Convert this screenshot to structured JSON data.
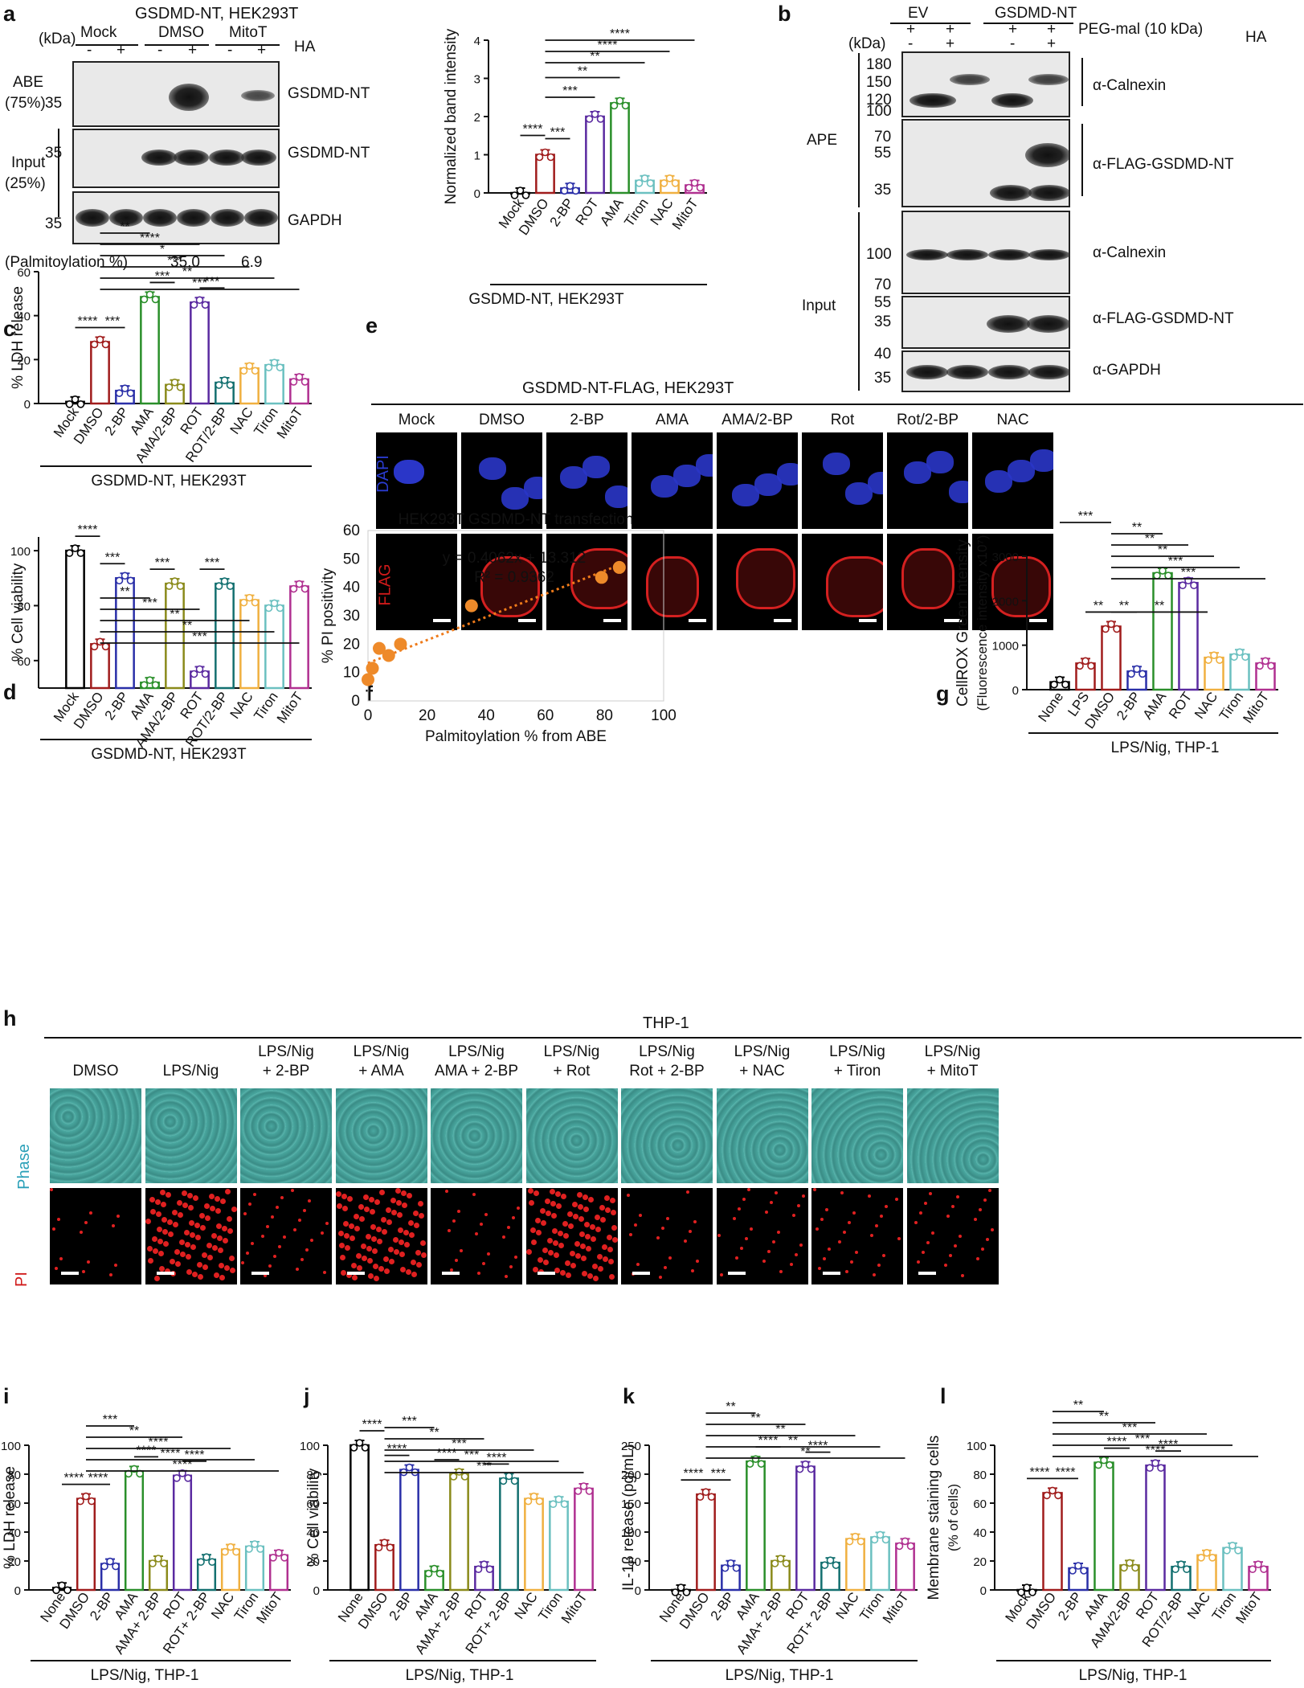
{
  "colors": {
    "Mock": "#000000",
    "None": "#000000",
    "DMSO": "#a01c1c",
    "2-BP": "#2a2fa8",
    "AMA": "#2a8f2a",
    "AMA/2-BP": "#8a8a1a",
    "ROT": "#5a2aa0",
    "ROT/2-BP": "#137070",
    "NAC": "#f0b040",
    "Tiron": "#6bc0c0",
    "MitoT": "#b03090",
    "LPS": "#a01c1c",
    "dot": "#ee8a2a"
  },
  "panel_labels": {
    "a": "a",
    "b": "b",
    "c": "c",
    "d": "d",
    "e": "e",
    "f": "f",
    "g": "g",
    "h": "h",
    "i": "i",
    "j": "j",
    "k": "k",
    "l": "l"
  },
  "panel_a": {
    "title": "GSDMD-NT, HEK293T",
    "kda": "(kDa)",
    "groups": [
      "Mock",
      "DMSO",
      "MitoT"
    ],
    "ha_signs": [
      "-",
      "+",
      "-",
      "+",
      "-",
      "+"
    ],
    "ha": "HA",
    "abe": "ABE",
    "abe_pct": "(75%)",
    "input": "Input",
    "input_pct": "(25%)",
    "mw": [
      "35",
      "35",
      "35"
    ],
    "blot_labels": [
      "GSDMD-NT",
      "GSDMD-NT",
      "GAPDH"
    ],
    "palm_label": "(Palmitoylation %)",
    "palm_values": [
      "35.0",
      "6.9"
    ]
  },
  "panel_a_chart": {
    "ylabel": "Normalized band intensity",
    "xlabel": "GSDMD-NT, HEK293T",
    "yticks": [
      "0",
      "1",
      "2",
      "3",
      "4"
    ],
    "sig": [
      "****",
      "***",
      "***",
      "**",
      "**",
      "****",
      "****"
    ]
  },
  "panel_b": {
    "groups": [
      "EV",
      "GSDMD-NT"
    ],
    "peg": "PEG-mal (10 kDa)",
    "ha": "HA",
    "peg_signs": [
      "+",
      "+",
      "+",
      "+"
    ],
    "ha_signs": [
      "-",
      "+",
      "-",
      "+"
    ],
    "kda": "(kDa)",
    "ape": "APE",
    "input": "Input",
    "mw_ape": [
      "180",
      "150",
      "120",
      "100",
      "70",
      "55",
      "35"
    ],
    "mw_input": [
      "100",
      "70",
      "55",
      "35",
      "40",
      "35"
    ],
    "labels": [
      "α-Calnexin",
      "α-FLAG-GSDMD-NT",
      "α-Calnexin",
      "α-FLAG-GSDMD-NT",
      "α-GAPDH"
    ]
  },
  "panel_e": {
    "title": "GSDMD-NT-FLAG, HEK293T",
    "cols": [
      "Mock",
      "DMSO",
      "2-BP",
      "AMA",
      "AMA/2-BP",
      "Rot",
      "Rot/2-BP",
      "NAC"
    ],
    "rows": [
      "DAPI",
      "FLAG"
    ]
  },
  "panel_h": {
    "title": "THP-1",
    "cols_line1": [
      "DMSO",
      "LPS/Nig",
      "LPS/Nig",
      "LPS/Nig",
      "LPS/Nig",
      "LPS/Nig",
      "LPS/Nig",
      "LPS/Nig",
      "LPS/Nig",
      "LPS/Nig"
    ],
    "cols_line2": [
      "",
      "",
      "+ 2-BP",
      "+ AMA",
      "AMA + 2-BP",
      "+ Rot",
      "Rot + 2-BP",
      "+ NAC",
      "+ Tiron",
      "+ MitoT"
    ],
    "rows": [
      "Phase",
      "PI"
    ]
  },
  "chart_data": [
    {
      "id": "a",
      "type": "bar",
      "categories": [
        "Mock",
        "DMSO",
        "2-BP",
        "ROT",
        "AMA",
        "Tiron",
        "NAC",
        "MitoT"
      ],
      "values": [
        0,
        1.0,
        0.12,
        2.0,
        2.35,
        0.32,
        0.32,
        0.2
      ],
      "ylim": [
        0,
        4
      ],
      "ylabel": "Normalized band intensity",
      "xlabel": "GSDMD-NT, HEK293T"
    },
    {
      "id": "c",
      "type": "bar",
      "categories": [
        "Mock",
        "DMSO",
        "2-BP",
        "AMA",
        "AMA/2-BP",
        "ROT",
        "ROT/2-BP",
        "NAC",
        "Tiron",
        "MitoT"
      ],
      "values": [
        0.8,
        28,
        5.8,
        48.5,
        8.5,
        46,
        9.5,
        16,
        17.5,
        11
      ],
      "ylim": [
        0,
        60
      ],
      "ylabel": "% LDH release",
      "xlabel": "GSDMD-NT, HEK293T",
      "yticks": [
        "0",
        "20",
        "40",
        "60"
      ],
      "sig": [
        "****",
        "***",
        "**",
        "***",
        "***",
        "****",
        "*",
        "***",
        "**",
        "***"
      ]
    },
    {
      "id": "d",
      "type": "bar",
      "categories": [
        "Mock",
        "DMSO",
        "2-BP",
        "AMA",
        "AMA/2-BP",
        "ROT",
        "ROT/2-BP",
        "NAC",
        "Tiron",
        "MitoT"
      ],
      "values": [
        100,
        66,
        90,
        52,
        88,
        56,
        88,
        82,
        80,
        87
      ],
      "ylim": [
        50,
        105
      ],
      "ylabel": "% Cell viability",
      "xlabel": "GSDMD-NT, HEK293T",
      "yticks": [
        "60",
        "80",
        "100"
      ],
      "sig": [
        "****",
        "***",
        "***",
        "***",
        "**",
        "***",
        "**",
        "**",
        "***"
      ]
    },
    {
      "id": "f",
      "type": "scatter",
      "title": "HEK293T GSDMD-NT transfection",
      "xlabel": "Palmitoylation % from ABE",
      "ylabel": "% PI positivity",
      "xlim": [
        0,
        100
      ],
      "ylim": [
        0,
        60
      ],
      "x": [
        0,
        1.5,
        3.8,
        7,
        11,
        35,
        79,
        85
      ],
      "y": [
        7.5,
        11.5,
        18.5,
        16,
        20,
        33.5,
        43.5,
        47
      ],
      "equation": "y = 0.4062x + 13.312",
      "r2": "R² = 0.9362",
      "xticks": [
        "0",
        "20",
        "40",
        "60",
        "80",
        "100"
      ],
      "yticks": [
        "0",
        "10",
        "20",
        "30",
        "40",
        "50",
        "60"
      ]
    },
    {
      "id": "g",
      "type": "bar",
      "categories": [
        "None",
        "LPS",
        "DMSO",
        "2-BP",
        "AMA",
        "ROT",
        "NAC",
        "Tiron",
        "MitoT"
      ],
      "values": [
        170,
        590,
        1420,
        410,
        2620,
        2400,
        720,
        790,
        590
      ],
      "ylim": [
        0,
        3000
      ],
      "ylabel": "CellROX Green Intensity",
      "ylabel2": "(Fluorescence intensity x10⁷)",
      "xlabel": "LPS/Nig, THP-1",
      "yticks": [
        "0",
        "1000",
        "2000",
        "3000"
      ],
      "sig": [
        "**",
        "***",
        "**",
        "**",
        "**",
        "**",
        "***",
        "***",
        "**"
      ]
    },
    {
      "id": "i",
      "type": "bar",
      "categories": [
        "None",
        "DMSO",
        "2-BP",
        "AMA",
        "AMA+ 2-BP",
        "ROT",
        "ROT+ 2-BP",
        "NAC",
        "Tiron",
        "MitoT"
      ],
      "values": [
        1.5,
        63,
        18,
        82,
        20,
        79,
        21,
        28,
        30,
        24
      ],
      "ylim": [
        0,
        100
      ],
      "ylabel": "% LDH release",
      "xlabel": "LPS/Nig, THP-1",
      "yticks": [
        "0",
        "20",
        "40",
        "60",
        "80",
        "100"
      ],
      "sig": [
        "****",
        "****",
        "***",
        "****",
        "****",
        "**",
        "****",
        "****",
        "****"
      ]
    },
    {
      "id": "j",
      "type": "bar",
      "categories": [
        "None",
        "DMSO",
        "2-BP",
        "AMA",
        "AMA+ 2-BP",
        "ROT",
        "ROT+ 2-BP",
        "NAC",
        "Tiron",
        "MitoT"
      ],
      "values": [
        100,
        31,
        83,
        13,
        80,
        16,
        77,
        63,
        61,
        70
      ],
      "ylim": [
        0,
        100
      ],
      "ylabel": "% Cell viability",
      "xlabel": "LPS/Nig, THP-1",
      "yticks": [
        "0",
        "20",
        "40",
        "60",
        "80",
        "100"
      ],
      "sig": [
        "****",
        "****",
        "***",
        "****",
        "****",
        "**",
        "***",
        "***",
        "***",
        "***"
      ]
    },
    {
      "id": "k",
      "type": "bar",
      "categories": [
        "None",
        "DMSO",
        "2-BP",
        "AMA",
        "AMA+ 2-BP",
        "ROT",
        "ROT+ 2-BP",
        "NAC",
        "Tiron",
        "MitoT"
      ],
      "values": [
        0,
        165,
        42,
        222,
        50,
        213,
        47,
        88,
        91,
        80
      ],
      "ylim": [
        0,
        250
      ],
      "ylabel": "IL-1β release (pg/mL)",
      "xlabel": "LPS/Nig, THP-1",
      "yticks": [
        "0",
        "50",
        "100",
        "150",
        "200",
        "250"
      ],
      "sig": [
        "****",
        "***",
        "**",
        "****",
        "****",
        "**",
        "**",
        "**",
        "**",
        "**"
      ]
    },
    {
      "id": "l",
      "type": "bar",
      "categories": [
        "Mock",
        "DMSO",
        "2-BP",
        "AMA",
        "AMA/2-BP",
        "ROT",
        "ROT/2-BP",
        "NAC",
        "Tiron",
        "MitoT"
      ],
      "values": [
        0,
        67,
        15,
        88,
        17,
        86,
        16,
        24,
        29,
        16
      ],
      "ylim": [
        0,
        100
      ],
      "ylabel": "Membrane staining cells",
      "ylabel2": "(% of cells)",
      "xlabel": "LPS/Nig, THP-1",
      "yticks": [
        "0",
        "20",
        "40",
        "60",
        "80",
        "100"
      ],
      "sig": [
        "****",
        "****",
        "**",
        "****",
        "****",
        "**",
        "***",
        "***",
        "****"
      ]
    }
  ]
}
